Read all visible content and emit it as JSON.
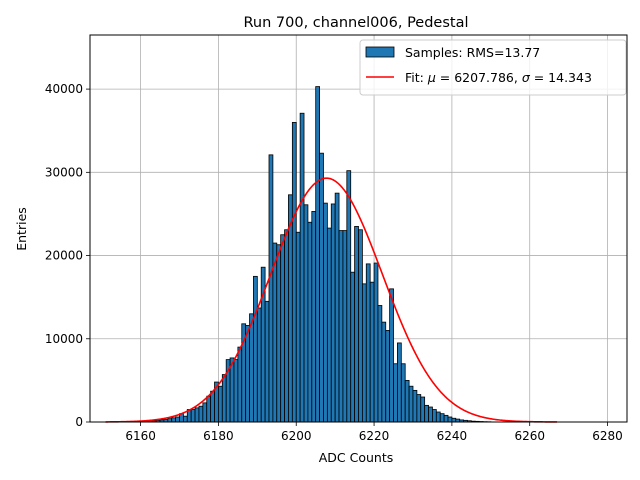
{
  "chart_data": {
    "type": "bar",
    "title": "Run 700, channel006, Pedestal",
    "xlabel": "ADC Counts",
    "ylabel": "Entries",
    "xlim": [
      6147,
      6285
    ],
    "ylim": [
      0,
      46500
    ],
    "xticks": [
      6160,
      6180,
      6200,
      6220,
      6240,
      6260,
      6280
    ],
    "yticks": [
      0,
      10000,
      20000,
      30000,
      40000
    ],
    "grid": true,
    "legend_position": "top-right",
    "bar_color": "#1f77b4",
    "fit_color": "#ff0000",
    "bins": [
      [
        6160,
        100
      ],
      [
        6161,
        100
      ],
      [
        6162,
        150
      ],
      [
        6163,
        150
      ],
      [
        6164,
        200
      ],
      [
        6165,
        250
      ],
      [
        6166,
        300
      ],
      [
        6167,
        400
      ],
      [
        6168,
        500
      ],
      [
        6169,
        600
      ],
      [
        6170,
        1000
      ],
      [
        6171,
        700
      ],
      [
        6172,
        1500
      ],
      [
        6173,
        1500
      ],
      [
        6174,
        1700
      ],
      [
        6175,
        1900
      ],
      [
        6176,
        2300
      ],
      [
        6177,
        3100
      ],
      [
        6178,
        3700
      ],
      [
        6179,
        4800
      ],
      [
        6180,
        4300
      ],
      [
        6181,
        5700
      ],
      [
        6182,
        7500
      ],
      [
        6183,
        7700
      ],
      [
        6184,
        7500
      ],
      [
        6185,
        9000
      ],
      [
        6186,
        11800
      ],
      [
        6187,
        11600
      ],
      [
        6188,
        13000
      ],
      [
        6189,
        17500
      ],
      [
        6190,
        13700
      ],
      [
        6191,
        18600
      ],
      [
        6192,
        14500
      ],
      [
        6193,
        32100
      ],
      [
        6194,
        21500
      ],
      [
        6195,
        21300
      ],
      [
        6196,
        22500
      ],
      [
        6197,
        23100
      ],
      [
        6198,
        27300
      ],
      [
        6199,
        36000
      ],
      [
        6200,
        22800
      ],
      [
        6201,
        37100
      ],
      [
        6202,
        26100
      ],
      [
        6203,
        24000
      ],
      [
        6204,
        25300
      ],
      [
        6205,
        40300
      ],
      [
        6206,
        32300
      ],
      [
        6207,
        26300
      ],
      [
        6208,
        23300
      ],
      [
        6209,
        26200
      ],
      [
        6210,
        27500
      ],
      [
        6211,
        23000
      ],
      [
        6212,
        23000
      ],
      [
        6213,
        30200
      ],
      [
        6214,
        18000
      ],
      [
        6215,
        23500
      ],
      [
        6216,
        23100
      ],
      [
        6217,
        16600
      ],
      [
        6218,
        19000
      ],
      [
        6219,
        16800
      ],
      [
        6220,
        19100
      ],
      [
        6221,
        14000
      ],
      [
        6222,
        12000
      ],
      [
        6223,
        11000
      ],
      [
        6224,
        16000
      ],
      [
        6225,
        7000
      ],
      [
        6226,
        9500
      ],
      [
        6227,
        7000
      ],
      [
        6228,
        5000
      ],
      [
        6229,
        4300
      ],
      [
        6230,
        3800
      ],
      [
        6231,
        3300
      ],
      [
        6232,
        3000
      ],
      [
        6233,
        2000
      ],
      [
        6234,
        1800
      ],
      [
        6235,
        1500
      ],
      [
        6236,
        1200
      ],
      [
        6237,
        1000
      ],
      [
        6238,
        800
      ],
      [
        6239,
        600
      ],
      [
        6240,
        450
      ],
      [
        6241,
        350
      ],
      [
        6242,
        250
      ],
      [
        6243,
        200
      ],
      [
        6244,
        150
      ],
      [
        6245,
        100
      ],
      [
        6246,
        80
      ],
      [
        6247,
        60
      ],
      [
        6248,
        40
      ],
      [
        6249,
        30
      ]
    ],
    "fit": {
      "mu": 6207.786,
      "sigma": 14.343,
      "amplitude": 29300,
      "x_range": [
        6151,
        6267
      ]
    },
    "legend": [
      {
        "kind": "patch",
        "label": "Samples: RMS=13.77"
      },
      {
        "kind": "line",
        "label_prefix": "Fit: ",
        "mu_symbol": "μ",
        "mu_text": " = 6207.786, ",
        "sigma_symbol": "σ",
        "sigma_text": " = 14.343"
      }
    ]
  }
}
